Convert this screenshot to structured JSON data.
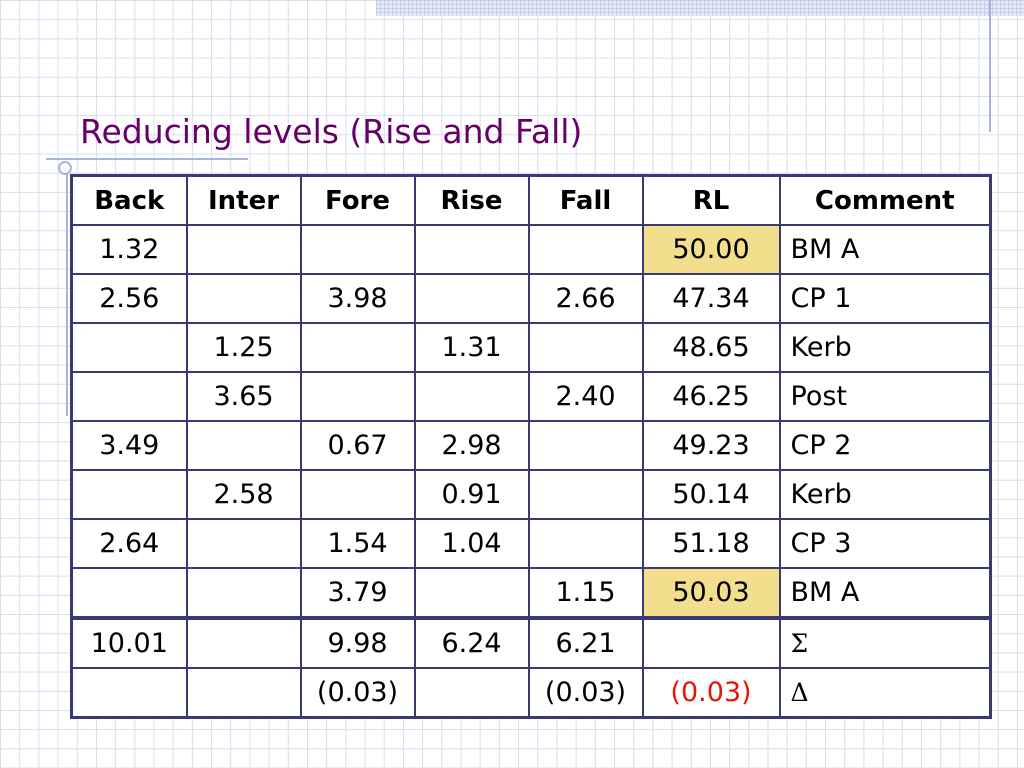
{
  "slide": {
    "title": "Reducing levels (Rise and Fall)",
    "accent_color": "#660066",
    "highlight_color": "#f2de8c",
    "error_color": "#ee1100"
  },
  "table": {
    "headers": [
      "Back",
      "Inter",
      "Fore",
      "Rise",
      "Fall",
      "RL",
      "Comment"
    ],
    "rows": [
      [
        "1.32",
        "",
        "",
        "",
        "",
        "50.00",
        "BM A"
      ],
      [
        "2.56",
        "",
        "3.98",
        "",
        "2.66",
        "47.34",
        "CP 1"
      ],
      [
        "",
        "1.25",
        "",
        "1.31",
        "",
        "48.65",
        "Kerb"
      ],
      [
        "",
        "3.65",
        "",
        "",
        "2.40",
        "46.25",
        "Post"
      ],
      [
        "3.49",
        "",
        "0.67",
        "2.98",
        "",
        "49.23",
        "CP 2"
      ],
      [
        "",
        "2.58",
        "",
        "0.91",
        "",
        "50.14",
        "Kerb"
      ],
      [
        "2.64",
        "",
        "1.54",
        "1.04",
        "",
        "51.18",
        "CP 3"
      ],
      [
        "",
        "",
        "3.79",
        "",
        "1.15",
        "50.03",
        "BM A"
      ]
    ],
    "totals": [
      "10.01",
      "",
      "9.98",
      "6.24",
      "6.21",
      "",
      "Σ"
    ],
    "differences": [
      "",
      "",
      "(0.03)",
      "",
      "(0.03)",
      "(0.03)",
      "Δ"
    ]
  }
}
